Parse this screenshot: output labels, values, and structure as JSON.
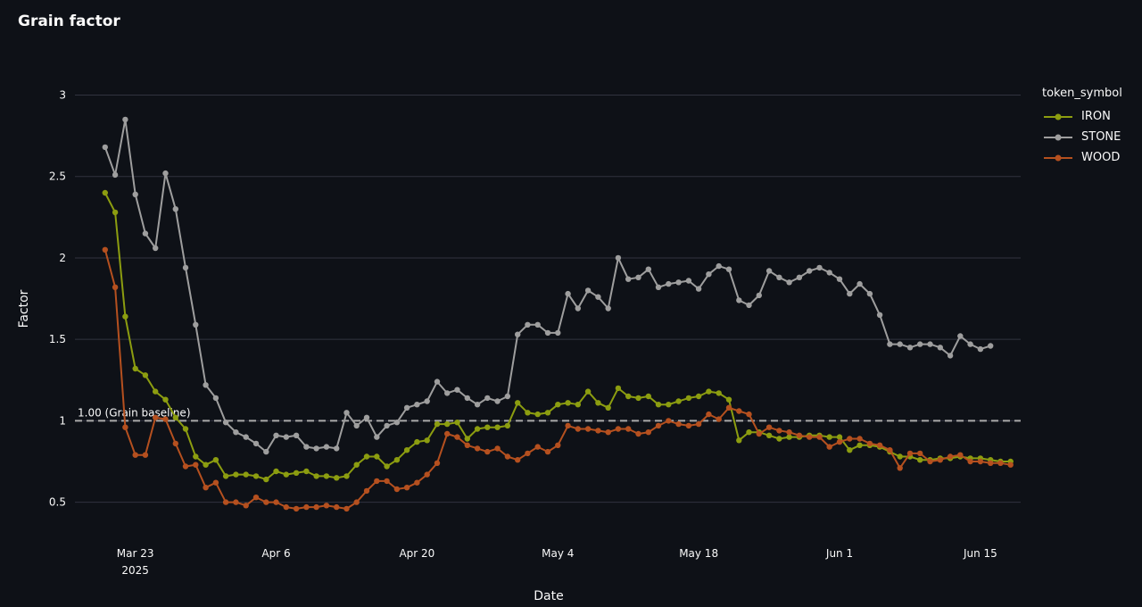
{
  "chart_data": {
    "type": "line",
    "title": "Grain factor",
    "xlabel": "Date",
    "ylabel": "Factor",
    "legend_title": "token_symbol",
    "legend_position": "right",
    "grid": true,
    "ylim": [
      0.35,
      3.2
    ],
    "xlim": [
      "2025-03-17",
      "2025-06-19"
    ],
    "y_ticks": [
      0.5,
      1,
      1.5,
      2,
      2.5,
      3
    ],
    "y_tick_labels": [
      "0.5",
      "1",
      "1.5",
      "2",
      "2.5",
      "3"
    ],
    "x_ticks": [
      "2025-03-23",
      "2025-04-06",
      "2025-04-20",
      "2025-05-04",
      "2025-05-18",
      "2025-06-01",
      "2025-06-15"
    ],
    "x_tick_labels": [
      "Mar 23",
      "Apr 6",
      "Apr 20",
      "May 4",
      "May 18",
      "Jun 1",
      "Jun 15"
    ],
    "x_tick_sublabel": "2025",
    "baseline": {
      "value": 1.0,
      "label": "1.00 (Grain baseline)",
      "color": "#aaaaaa"
    },
    "x_start": "2025-03-20",
    "x_step_days": 1,
    "series": [
      {
        "name": "IRON",
        "color": "#8c9d10",
        "values": [
          2.4,
          2.28,
          1.64,
          1.32,
          1.28,
          1.18,
          1.13,
          1.02,
          0.95,
          0.78,
          0.73,
          0.76,
          0.66,
          0.67,
          0.67,
          0.66,
          0.64,
          0.69,
          0.67,
          0.68,
          0.69,
          0.66,
          0.66,
          0.65,
          0.66,
          0.73,
          0.78,
          0.78,
          0.72,
          0.76,
          0.82,
          0.87,
          0.88,
          0.98,
          0.98,
          0.99,
          0.89,
          0.95,
          0.96,
          0.96,
          0.97,
          1.11,
          1.05,
          1.04,
          1.05,
          1.1,
          1.11,
          1.1,
          1.18,
          1.11,
          1.08,
          1.2,
          1.15,
          1.14,
          1.15,
          1.1,
          1.1,
          1.12,
          1.14,
          1.15,
          1.18,
          1.17,
          1.13,
          0.88,
          0.93,
          0.93,
          0.91,
          0.89,
          0.9,
          0.9,
          0.91,
          0.91,
          0.9,
          0.9,
          0.82,
          0.85,
          0.85,
          0.84,
          0.81,
          0.78,
          0.78,
          0.76,
          0.76,
          0.77,
          0.77,
          0.78,
          0.77,
          0.77,
          0.76,
          0.75,
          0.75
        ]
      },
      {
        "name": "STONE",
        "color": "#9e9e9e",
        "values": [
          2.68,
          2.51,
          2.85,
          2.39,
          2.15,
          2.06,
          2.52,
          2.3,
          1.94,
          1.59,
          1.22,
          1.14,
          0.99,
          0.93,
          0.9,
          0.86,
          0.81,
          0.91,
          0.9,
          0.91,
          0.84,
          0.83,
          0.84,
          0.83,
          1.05,
          0.97,
          1.02,
          0.9,
          0.97,
          0.99,
          1.08,
          1.1,
          1.12,
          1.24,
          1.17,
          1.19,
          1.14,
          1.1,
          1.14,
          1.12,
          1.15,
          1.53,
          1.59,
          1.59,
          1.54,
          1.54,
          1.78,
          1.69,
          1.8,
          1.76,
          1.69,
          2.0,
          1.87,
          1.88,
          1.93,
          1.82,
          1.84,
          1.85,
          1.86,
          1.81,
          1.9,
          1.95,
          1.93,
          1.74,
          1.71,
          1.77,
          1.92,
          1.88,
          1.85,
          1.88,
          1.92,
          1.94,
          1.91,
          1.87,
          1.78,
          1.84,
          1.78,
          1.65,
          1.47,
          1.47,
          1.45,
          1.47,
          1.47,
          1.45,
          1.4,
          1.52,
          1.47,
          1.44,
          1.46
        ]
      },
      {
        "name": "WOOD",
        "color": "#b5501f",
        "values": [
          2.05,
          1.82,
          0.96,
          0.79,
          0.79,
          1.02,
          1.01,
          0.86,
          0.72,
          0.73,
          0.59,
          0.62,
          0.5,
          0.5,
          0.48,
          0.53,
          0.5,
          0.5,
          0.47,
          0.46,
          0.47,
          0.47,
          0.48,
          0.47,
          0.46,
          0.5,
          0.57,
          0.63,
          0.63,
          0.58,
          0.59,
          0.62,
          0.67,
          0.74,
          0.92,
          0.9,
          0.85,
          0.83,
          0.81,
          0.83,
          0.78,
          0.76,
          0.8,
          0.84,
          0.81,
          0.85,
          0.97,
          0.95,
          0.95,
          0.94,
          0.93,
          0.95,
          0.95,
          0.92,
          0.93,
          0.97,
          1.0,
          0.98,
          0.97,
          0.98,
          1.04,
          1.01,
          1.08,
          1.06,
          1.04,
          0.92,
          0.96,
          0.94,
          0.93,
          0.91,
          0.9,
          0.9,
          0.84,
          0.87,
          0.89,
          0.89,
          0.86,
          0.85,
          0.82,
          0.71,
          0.8,
          0.8,
          0.75,
          0.76,
          0.78,
          0.79,
          0.75,
          0.75,
          0.74,
          0.74,
          0.73
        ]
      }
    ]
  }
}
